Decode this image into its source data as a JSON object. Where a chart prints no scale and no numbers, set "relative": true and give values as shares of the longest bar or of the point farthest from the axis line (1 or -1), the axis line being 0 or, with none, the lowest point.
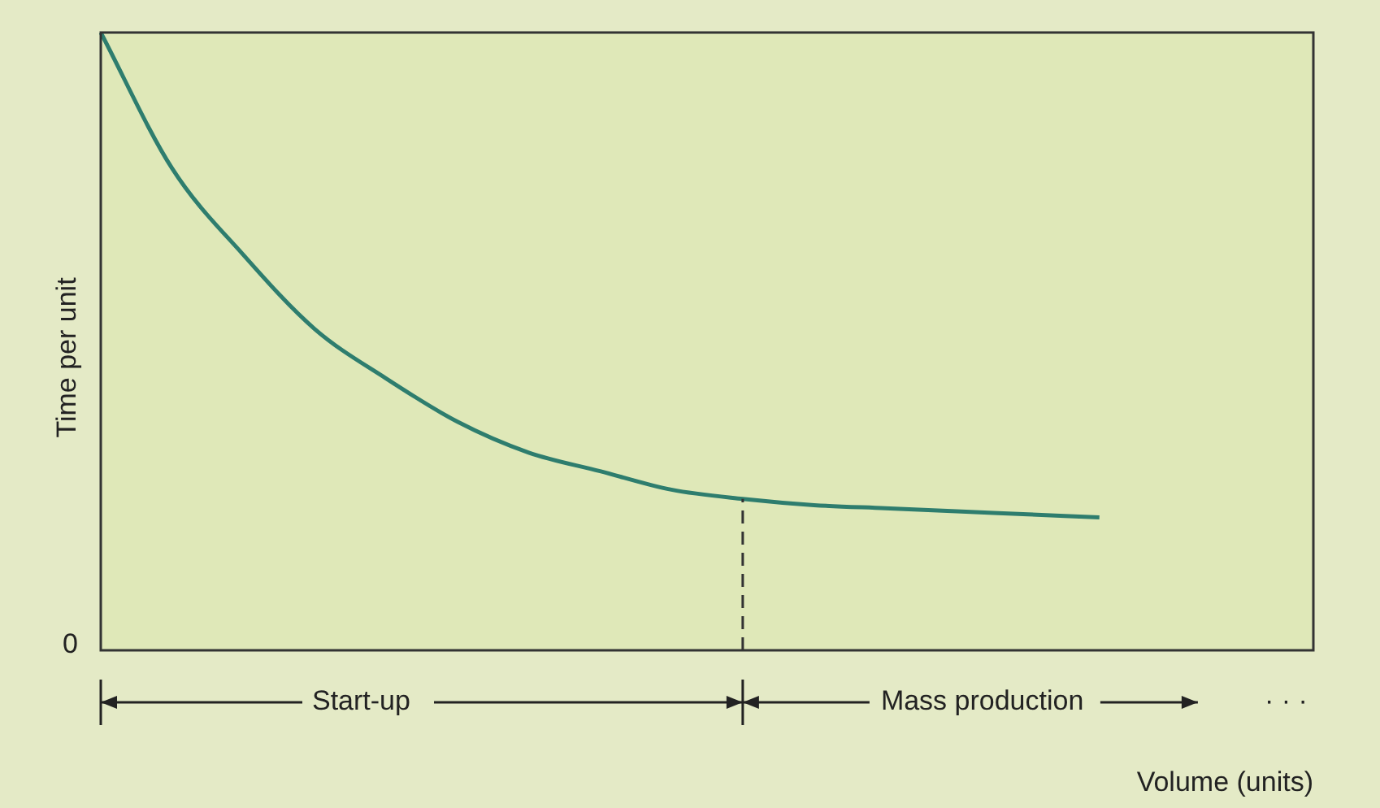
{
  "chart_data": {
    "type": "line",
    "relative": true,
    "xlabel": "Volume (units)",
    "ylabel": "Time per unit",
    "categories": [
      null,
      null,
      null,
      null,
      null,
      null,
      null,
      null,
      null,
      null,
      null,
      null,
      null,
      null,
      null,
      null,
      null,
      null
    ],
    "series": [
      {
        "color": "#2e7d6e",
        "values": [
          1.0,
          0.78,
          0.64,
          0.52,
          0.44,
          0.37,
          0.32,
          0.29,
          0.26,
          0.245,
          0.235,
          0.23,
          0.225,
          0.22,
          0.215,
          null,
          null,
          null
        ]
      }
    ],
    "annotations": [
      "0",
      "Start-up",
      "Mass production",
      "· · ·"
    ],
    "marker": "none",
    "line_style": "solid",
    "legend": false
  }
}
